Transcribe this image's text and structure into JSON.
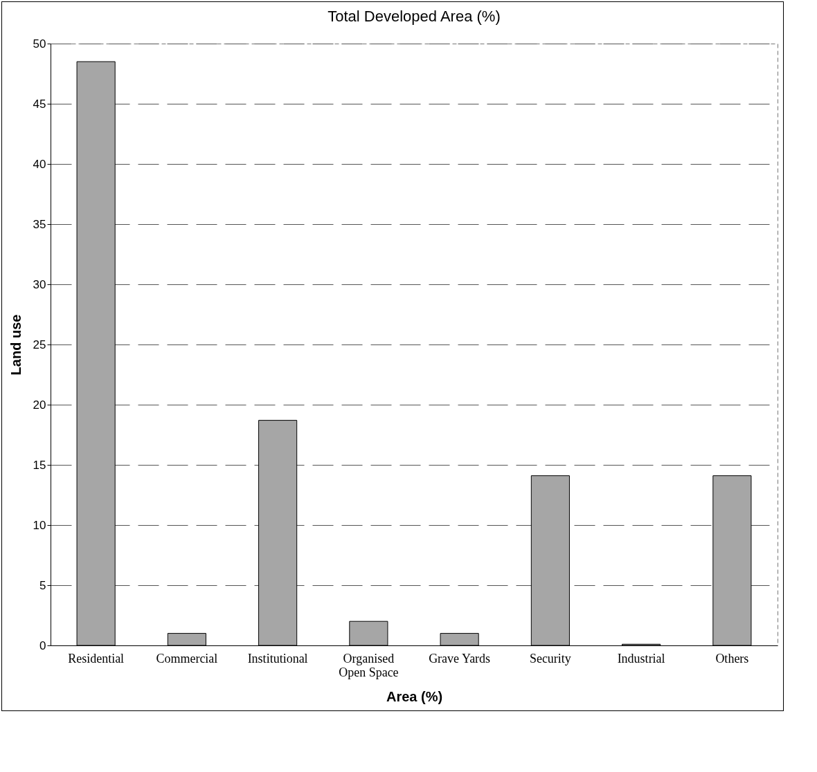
{
  "chart_data": {
    "type": "bar",
    "title": "Total Developed Area (%)",
    "xlabel": "Area (%)",
    "ylabel": "Land use",
    "categories": [
      "Residential",
      "Commercial",
      "Institutional",
      "Organised Open Space",
      "Grave Yards",
      "Security",
      "Industrial",
      "Others"
    ],
    "values": [
      48.5,
      1,
      18.7,
      2,
      1,
      14.1,
      0.1,
      14.1
    ],
    "color": "#a6a6a6",
    "ylim": [
      0,
      50
    ],
    "yticks": [
      0,
      5,
      10,
      15,
      20,
      25,
      30,
      35,
      40,
      45,
      50
    ],
    "grid": "y"
  }
}
